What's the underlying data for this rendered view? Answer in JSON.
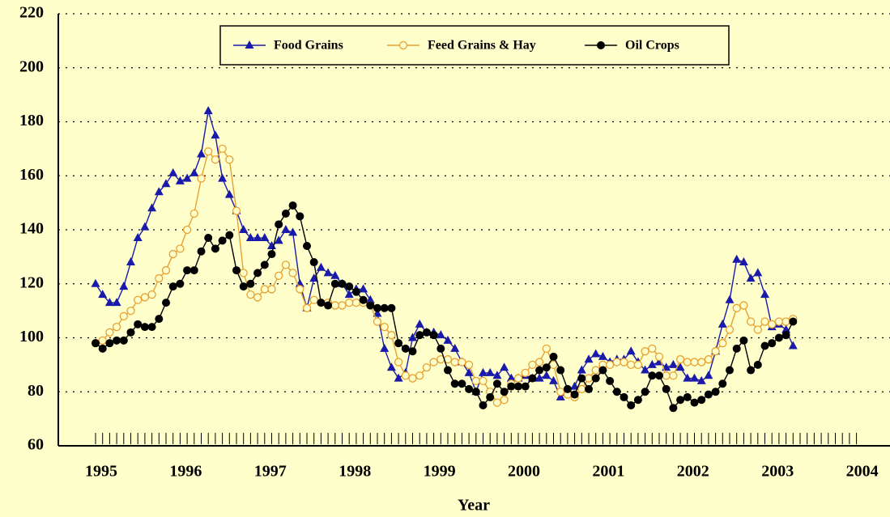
{
  "chart_data": {
    "type": "line",
    "x_label": "Year",
    "categories": [
      "1995",
      null,
      null,
      null,
      null,
      null,
      null,
      null,
      null,
      null,
      null,
      null,
      "1996",
      null,
      null,
      null,
      null,
      null,
      null,
      null,
      null,
      null,
      null,
      null,
      "1997",
      null,
      null,
      null,
      null,
      null,
      null,
      null,
      null,
      null,
      null,
      null,
      "1998",
      null,
      null,
      null,
      null,
      null,
      null,
      null,
      null,
      null,
      null,
      null,
      "1999",
      null,
      null,
      null,
      null,
      null,
      null,
      null,
      null,
      null,
      null,
      null,
      "2000",
      null,
      null,
      null,
      null,
      null,
      null,
      null,
      null,
      null,
      null,
      null,
      "2001",
      null,
      null,
      null,
      null,
      null,
      null,
      null,
      null,
      null,
      null,
      null,
      "2002",
      null,
      null,
      null,
      null,
      null,
      null,
      null,
      null,
      null,
      null,
      null,
      "2003",
      null,
      null,
      null,
      null,
      null,
      null,
      null,
      null,
      null,
      null,
      null,
      "2004"
    ],
    "series": [
      {
        "name": "Food Grains",
        "color": "#1a1aaa",
        "marker": "triangle",
        "values": [
          120,
          116,
          113,
          113,
          119,
          128,
          137,
          141,
          148,
          154,
          157,
          161,
          158,
          159,
          161,
          168,
          184,
          175,
          159,
          153,
          147,
          140,
          137,
          137,
          137,
          134,
          136,
          140,
          139,
          120,
          111,
          122,
          126,
          124,
          123,
          120,
          116,
          118,
          118,
          114,
          109,
          96,
          89,
          85,
          87,
          100,
          105,
          102,
          102,
          101,
          99,
          96,
          91,
          87,
          80,
          87,
          87,
          86,
          89,
          85,
          85,
          86,
          85,
          85,
          86,
          84,
          78,
          80,
          82,
          88,
          92,
          94,
          93,
          91,
          92,
          92,
          95,
          91,
          88,
          90,
          91,
          89,
          90,
          89,
          85,
          85,
          84,
          86,
          95,
          105,
          114,
          129,
          128,
          122,
          124,
          116,
          104,
          105,
          103,
          97,
          null,
          null,
          null,
          null,
          null,
          null,
          null,
          null,
          null
        ]
      },
      {
        "name": "Feed Grains & Hay",
        "color": "#e8a030",
        "marker": "open-circle",
        "values": [
          98,
          99,
          102,
          104,
          108,
          110,
          114,
          115,
          116,
          122,
          125,
          131,
          133,
          140,
          146,
          159,
          169,
          166,
          170,
          166,
          147,
          124,
          116,
          115,
          118,
          118,
          123,
          127,
          124,
          118,
          111,
          114,
          113,
          113,
          112,
          112,
          113,
          113,
          113,
          112,
          106,
          104,
          101,
          91,
          86,
          85,
          86,
          89,
          91,
          92,
          92,
          91,
          91,
          90,
          84,
          84,
          80,
          76,
          77,
          83,
          85,
          87,
          90,
          91,
          96,
          90,
          80,
          79,
          78,
          81,
          85,
          88,
          90,
          90,
          91,
          91,
          90,
          90,
          95,
          96,
          93,
          86,
          86,
          92,
          91,
          91,
          91,
          92,
          95,
          98,
          103,
          111,
          112,
          106,
          103,
          106,
          105,
          106,
          106,
          107,
          null,
          null,
          null,
          null,
          null,
          null,
          null,
          null,
          null
        ]
      },
      {
        "name": "Oil Crops",
        "color": "#000000",
        "marker": "circle",
        "values": [
          98,
          96,
          98,
          99,
          99,
          102,
          105,
          104,
          104,
          107,
          113,
          119,
          120,
          125,
          125,
          132,
          137,
          133,
          136,
          138,
          125,
          119,
          120,
          124,
          127,
          131,
          142,
          146,
          149,
          145,
          134,
          128,
          113,
          112,
          120,
          120,
          119,
          117,
          114,
          112,
          111,
          111,
          111,
          98,
          96,
          95,
          101,
          102,
          101,
          96,
          88,
          83,
          83,
          81,
          80,
          75,
          78,
          83,
          80,
          82,
          82,
          82,
          85,
          88,
          89,
          93,
          88,
          81,
          79,
          85,
          81,
          85,
          88,
          84,
          80,
          78,
          75,
          77,
          80,
          86,
          86,
          81,
          74,
          77,
          78,
          76,
          77,
          79,
          80,
          83,
          88,
          96,
          99,
          88,
          90,
          97,
          98,
          100,
          101,
          106,
          null,
          null,
          null,
          null,
          null,
          null,
          null,
          null,
          null
        ]
      }
    ],
    "ylim": [
      60,
      220
    ],
    "yticks": [
      60,
      80,
      100,
      120,
      140,
      160,
      180,
      200,
      220
    ],
    "grid": true,
    "legend": "top"
  }
}
